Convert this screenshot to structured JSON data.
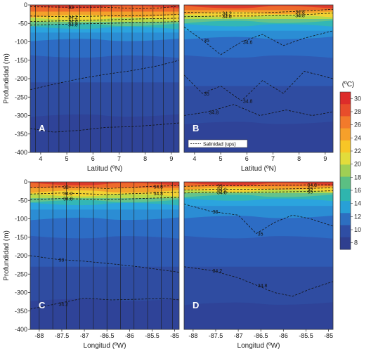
{
  "chart_data": [
    {
      "type": "heatmap",
      "panel_label": "A",
      "xlabel": "Latitud (ºN)",
      "ylabel": "Profundidad (m)",
      "x_ticks": [
        "4",
        "5",
        "6",
        "7",
        "8",
        "9"
      ],
      "xlim": [
        3.6,
        9.3
      ],
      "y_ticks": [
        "0",
        "-50",
        "-100",
        "-150",
        "-200",
        "-250",
        "-300",
        "-350",
        "-400"
      ],
      "ylim": [
        -400,
        0
      ],
      "station_x": [
        3.8,
        4.3,
        4.7,
        5.1,
        5.5,
        5.9,
        6.3,
        6.7,
        7.1,
        7.5,
        7.9,
        8.3,
        8.7,
        9.1
      ],
      "isohaline_labels": [
        "33",
        "34.2",
        "34.8",
        "34.8"
      ],
      "isohalines": [
        {
          "label": "33",
          "x": [
            3.6,
            5.0,
            6.4,
            7.8,
            8.6,
            9.3
          ],
          "y": [
            -5,
            -6,
            -6,
            -10,
            -8,
            -3
          ]
        },
        {
          "label": "34.2",
          "x": [
            3.6,
            5.0,
            6.4,
            7.8,
            9.3
          ],
          "y": [
            -30,
            -32,
            -30,
            -29,
            -26
          ]
        },
        {
          "label": "34.6",
          "x": [
            3.6,
            5.0,
            6.4,
            7.8,
            9.3
          ],
          "y": [
            -45,
            -43,
            -41,
            -38,
            -36
          ]
        },
        {
          "label": "34.8",
          "x": [
            3.6,
            5.0,
            6.4,
            7.8,
            9.3
          ],
          "y": [
            -55,
            -52,
            -50,
            -48,
            -45
          ]
        },
        {
          "label": "34.8",
          "x": [
            3.6,
            4.5,
            5.5,
            6.5,
            7.5,
            8.5,
            9.3
          ],
          "y": [
            -230,
            -215,
            -200,
            -188,
            -178,
            -165,
            -150
          ]
        },
        {
          "label": "34.8",
          "x": [
            3.6,
            4.5,
            5.5,
            6.5,
            7.5,
            8.5,
            9.3
          ],
          "y": [
            -335,
            -345,
            -340,
            -332,
            -330,
            -325,
            -320
          ]
        }
      ],
      "isotherm_depths": [
        -6,
        -18,
        -30,
        -38,
        -46,
        -54,
        -62,
        -75,
        -95,
        -140,
        -210,
        -300
      ]
    },
    {
      "type": "heatmap",
      "panel_label": "B",
      "xlabel": "Latitud (ºN)",
      "ylabel": "",
      "x_ticks": [
        "4",
        "5",
        "6",
        "7",
        "8",
        "9"
      ],
      "xlim": [
        3.6,
        9.3
      ],
      "y_ticks": [],
      "ylim": [
        -400,
        0
      ],
      "legend": "Salinidad (ups)",
      "isohaline_labels": [
        "34.2",
        "34.6",
        "35",
        "35",
        "34.8",
        "34.8",
        "34.8",
        "34.6",
        "34.8"
      ],
      "isohalines": [
        {
          "label": "34.2",
          "x": [
            3.6,
            5.0,
            6.4,
            7.8,
            9.3
          ],
          "y": [
            -20,
            -22,
            -22,
            -18,
            -12
          ]
        },
        {
          "label": "34.6",
          "x": [
            3.6,
            5.0,
            6.4,
            7.8,
            9.3
          ],
          "y": [
            -32,
            -30,
            -30,
            -28,
            -22
          ]
        },
        {
          "label": "35",
          "x": [
            3.6,
            4.3,
            5.0,
            5.8,
            6.6,
            7.4,
            8.2,
            9.3
          ],
          "y": [
            -60,
            -95,
            -135,
            -100,
            -80,
            -110,
            -90,
            -70
          ]
        },
        {
          "label": "34.8",
          "x": [
            3.6,
            4.3,
            5.0,
            5.8,
            6.6,
            7.4,
            8.2,
            9.3
          ],
          "y": [
            -190,
            -240,
            -220,
            -260,
            -205,
            -240,
            -180,
            -200
          ]
        },
        {
          "label": "34.8",
          "x": [
            3.6,
            4.5,
            5.5,
            6.5,
            7.5,
            8.5,
            9.3
          ],
          "y": [
            -300,
            -290,
            -270,
            -300,
            -285,
            -300,
            -290
          ]
        }
      ],
      "isotherm_depths": [
        -6,
        -14,
        -22,
        -30,
        -38,
        -46,
        -55,
        -70,
        -90,
        -140,
        -220,
        -320
      ]
    },
    {
      "type": "heatmap",
      "panel_label": "C",
      "xlabel": "Longitud (ºW)",
      "ylabel": "Profundidad (m)",
      "x_ticks": [
        "-88",
        "-87.5",
        "-87",
        "-86.5",
        "-86",
        "-85.5",
        "-85"
      ],
      "xlim": [
        -88.2,
        -84.9
      ],
      "y_ticks": [
        "0",
        "-50",
        "-100",
        "-150",
        "-200",
        "-250",
        "-300",
        "-350",
        "-400"
      ],
      "ylim": [
        -400,
        0
      ],
      "station_x": [
        -88.0,
        -87.7,
        -87.4,
        -87.1,
        -86.8,
        -86.5,
        -86.2,
        -85.9,
        -85.6,
        -85.3,
        -85.05
      ],
      "isohaline_labels": [
        "33",
        "34.2",
        "34.8",
        "33",
        "34.2",
        "34.8",
        "34.8"
      ],
      "isohalines": [
        {
          "label": "33",
          "x": [
            -88.2,
            -87.5,
            -86.5,
            -85.5,
            -84.9
          ],
          "y": [
            -15,
            -13,
            -18,
            -12,
            -10
          ]
        },
        {
          "label": "34.2",
          "x": [
            -88.2,
            -87.5,
            -86.5,
            -85.5,
            -84.9
          ],
          "y": [
            -33,
            -30,
            -34,
            -30,
            -28
          ]
        },
        {
          "label": "34.8",
          "x": [
            -88.2,
            -87.5,
            -86.5,
            -85.5,
            -84.9
          ],
          "y": [
            -48,
            -45,
            -48,
            -44,
            -42
          ]
        },
        {
          "label": "34.8",
          "x": [
            -88.2,
            -87.6,
            -87.0,
            -86.4,
            -85.8,
            -85.2,
            -84.9
          ],
          "y": [
            -200,
            -210,
            -215,
            -222,
            -230,
            -240,
            -245
          ]
        },
        {
          "label": "34.8",
          "x": [
            -88.2,
            -87.6,
            -87.0,
            -86.4,
            -85.8,
            -85.2,
            -84.9
          ],
          "y": [
            -345,
            -330,
            -315,
            -320,
            -318,
            -316,
            -320
          ]
        }
      ],
      "isotherm_depths": [
        -6,
        -16,
        -26,
        -36,
        -44,
        -52,
        -60,
        -75,
        -100,
        -150,
        -230,
        -320
      ]
    },
    {
      "type": "heatmap",
      "panel_label": "D",
      "xlabel": "Longitud (ºW)",
      "ylabel": "",
      "x_ticks": [
        "-88",
        "-87.5",
        "-87",
        "-86.5",
        "-86",
        "-85.5",
        "-85"
      ],
      "xlim": [
        -88.2,
        -84.9
      ],
      "y_ticks": [],
      "ylim": [
        -400,
        0
      ],
      "isohaline_labels": [
        "33",
        "34.2",
        "34.8",
        "33",
        "34.2",
        "34.8",
        "35",
        "35",
        "35",
        "34.8"
      ],
      "isohalines": [
        {
          "label": "33",
          "x": [
            -88.2,
            -87.5,
            -86.5,
            -85.5,
            -84.9
          ],
          "y": [
            -12,
            -10,
            -10,
            -8,
            -8
          ]
        },
        {
          "label": "34.2",
          "x": [
            -88.2,
            -87.5,
            -86.5,
            -85.5,
            -84.9
          ],
          "y": [
            -22,
            -20,
            -20,
            -18,
            -16
          ]
        },
        {
          "label": "34.8",
          "x": [
            -88.2,
            -87.5,
            -86.5,
            -85.5,
            -84.9
          ],
          "y": [
            -30,
            -28,
            -28,
            -26,
            -24
          ]
        },
        {
          "label": "35",
          "x": [
            -88.2,
            -87.6,
            -87.0,
            -86.6,
            -86.2,
            -85.8,
            -85.4,
            -84.9
          ],
          "y": [
            -60,
            -80,
            -90,
            -140,
            -110,
            -90,
            -100,
            -120
          ]
        },
        {
          "label": "34.8",
          "x": [
            -88.2,
            -87.6,
            -87.0,
            -86.6,
            -86.2,
            -85.8,
            -85.4,
            -84.9
          ],
          "y": [
            -230,
            -240,
            -260,
            -280,
            -300,
            -310,
            -290,
            -270
          ]
        }
      ],
      "isotherm_depths": [
        -6,
        -12,
        -18,
        -24,
        -30,
        -38,
        -48,
        -65,
        -95,
        -150,
        -230,
        -330
      ]
    }
  ],
  "colorbar": {
    "unit": "(ºC)",
    "ticks": [
      "30",
      "28",
      "26",
      "24",
      "22",
      "20",
      "18",
      "16",
      "14",
      "12",
      "10",
      "8"
    ],
    "colors": [
      "#dd2c2a",
      "#e84d2b",
      "#f27a2b",
      "#f6a02a",
      "#f8c626",
      "#e2dc3b",
      "#9fcf54",
      "#5bbf83",
      "#2fb5ae",
      "#28a0d6",
      "#2d6fc0",
      "#2f4ea4",
      "#2f3f8f"
    ]
  },
  "level_colors": [
    "#dd3a2c",
    "#ee6a2b",
    "#f3a22b",
    "#f3d233",
    "#b8d94a",
    "#66c38a",
    "#33b7b5",
    "#2ba4de",
    "#2b8dd4",
    "#2d6cc4",
    "#2f5ab3",
    "#2f4ca1",
    "#2f4398"
  ]
}
